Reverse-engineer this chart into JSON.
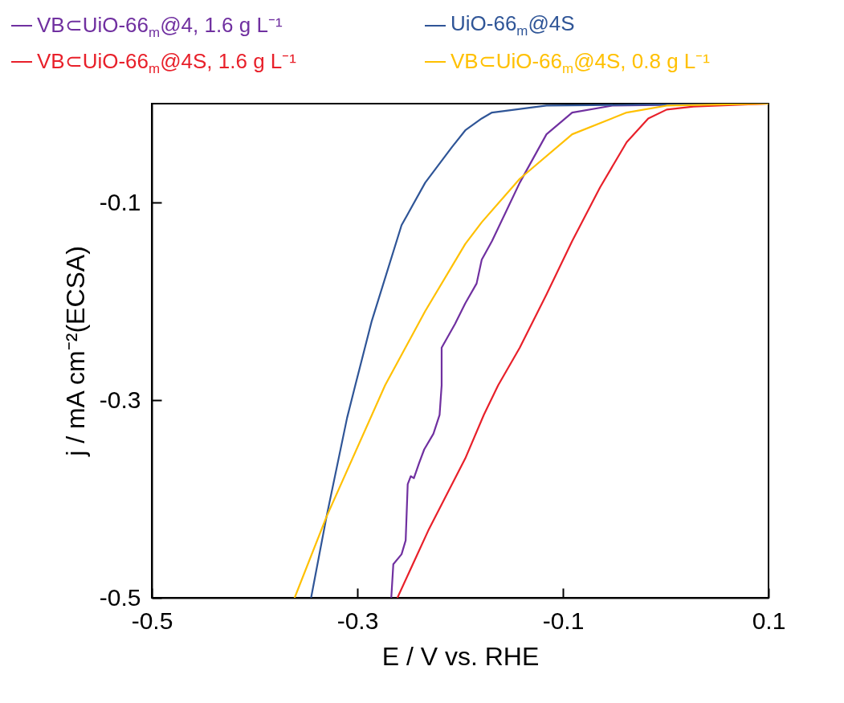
{
  "chart_data": {
    "type": "line",
    "xlabel": "E / V vs. RHE",
    "ylabel": "j / mA cm⁻²(ECSA)",
    "xlim": [
      -0.5,
      0.1
    ],
    "ylim": [
      -0.5,
      0
    ],
    "xticks": [
      -0.5,
      -0.3,
      -0.1,
      0.1
    ],
    "yticks": [
      -0.5,
      -0.3,
      -0.1
    ],
    "grid": false,
    "legend": "top",
    "line_style": "solid",
    "series": [
      {
        "name": "VB⊂UiO-66$_{m}$@4, 1.6 g L⁻¹",
        "color": "#7030a0",
        "x": [
          -0.267,
          -0.265,
          -0.257,
          -0.253,
          -0.251,
          -0.248,
          -0.245,
          -0.24,
          -0.235,
          -0.226,
          -0.22,
          -0.218,
          -0.218,
          -0.205,
          -0.195,
          -0.184,
          -0.179,
          -0.169,
          -0.142,
          -0.116,
          -0.091,
          -0.052,
          0.1
        ],
        "values": [
          -0.5,
          -0.466,
          -0.456,
          -0.442,
          -0.385,
          -0.377,
          -0.379,
          -0.364,
          -0.35,
          -0.334,
          -0.315,
          -0.285,
          -0.247,
          -0.223,
          -0.202,
          -0.182,
          -0.158,
          -0.139,
          -0.08,
          -0.031,
          -0.009,
          -0.002,
          0
        ]
      },
      {
        "name": "UiO-66$_{m}$@4S",
        "color": "#2f5597",
        "x": [
          -0.345,
          -0.33,
          -0.31,
          -0.302,
          -0.286,
          -0.257,
          -0.234,
          -0.208,
          -0.195,
          -0.179,
          -0.169,
          -0.116,
          0.1
        ],
        "values": [
          -0.5,
          -0.418,
          -0.318,
          -0.285,
          -0.22,
          -0.123,
          -0.08,
          -0.044,
          -0.027,
          -0.015,
          -0.009,
          -0.002,
          0
        ]
      },
      {
        "name": "VB⊂UiO-66$_{m}$@4S, 1.6 g L⁻¹",
        "color": "#e8202a",
        "x": [
          -0.261,
          -0.231,
          -0.195,
          -0.177,
          -0.163,
          -0.142,
          -0.116,
          -0.091,
          -0.064,
          -0.038,
          -0.017,
          0.001,
          0.027,
          0.1
        ],
        "values": [
          -0.5,
          -0.432,
          -0.359,
          -0.315,
          -0.285,
          -0.247,
          -0.193,
          -0.139,
          -0.085,
          -0.039,
          -0.015,
          -0.006,
          -0.003,
          0
        ]
      },
      {
        "name": "VB⊂UiO-66$_{m}$@4S, 0.8 g L⁻¹",
        "color": "#ffc000",
        "x": [
          -0.361,
          -0.33,
          -0.273,
          -0.234,
          -0.195,
          -0.179,
          -0.142,
          -0.091,
          -0.038,
          0.001,
          0.1
        ],
        "values": [
          -0.5,
          -0.418,
          -0.285,
          -0.21,
          -0.142,
          -0.12,
          -0.076,
          -0.031,
          -0.009,
          -0.002,
          0
        ]
      }
    ]
  }
}
